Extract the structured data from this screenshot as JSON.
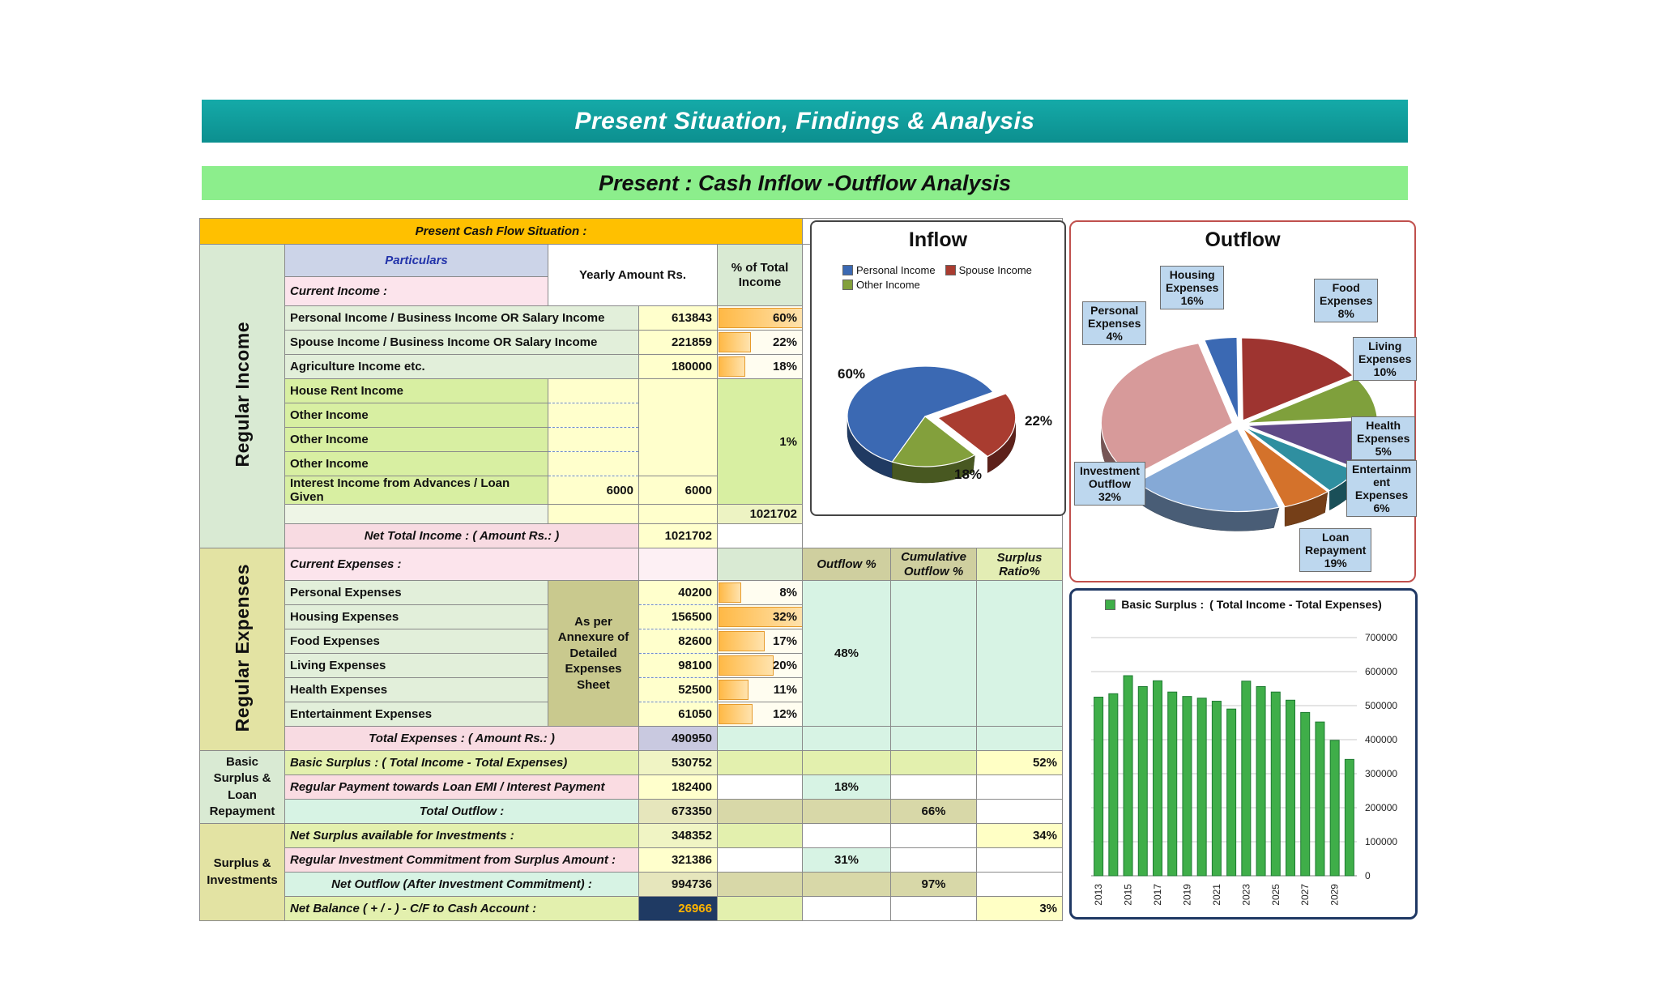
{
  "page": {
    "title": "Present Situation, Findings & Analysis",
    "subtitle": "Present : Cash Inflow -Outflow Analysis"
  },
  "table": {
    "header": "Present Cash Flow Situation :",
    "particulars": "Particulars",
    "yearly_amount": "Yearly Amount Rs.",
    "pct_total_income": "% of Total Income",
    "current_income": "Current Income :",
    "section_income": "Regular Income",
    "section_expenses": "Regular Expenses",
    "section_basic_surplus": "Basic Surplus & Loan Repayment",
    "section_surplus_inv": "Surplus & Investments",
    "income_rows": [
      {
        "label": "Personal Income / Business Income OR Salary Income",
        "amount": "613843",
        "pct": "60%",
        "bar": 100
      },
      {
        "label": "Spouse Income / Business Income OR Salary Income",
        "amount": "221859",
        "pct": "22%",
        "bar": 37
      },
      {
        "label": "Agriculture Income etc.",
        "amount": "180000",
        "pct": "18%",
        "bar": 30
      }
    ],
    "other_rows": [
      {
        "label": "House Rent Income"
      },
      {
        "label": "Other Income"
      },
      {
        "label": "Other Income"
      },
      {
        "label": "Other Income"
      }
    ],
    "other_pct": "1%",
    "interest_row": {
      "label": "Interest Income from Advances / Loan Given",
      "amount_a": "6000",
      "amount_b": "6000"
    },
    "subtotal_pct_cell": "1021702",
    "net_total": {
      "label": "Net Total Income : ( Amount Rs.: )",
      "amount": "1021702"
    },
    "current_expenses": "Current Expenses   :",
    "col_outflow": "Outflow %",
    "col_cumulative": "Cumulative Outflow %",
    "col_surplus_ratio": "Surplus Ratio%",
    "annexure_note": "As per Annexure of Detailed Expenses Sheet",
    "expense_rows": [
      {
        "label": "Personal Expenses",
        "amount": "40200",
        "pct": "8%",
        "bar": 25
      },
      {
        "label": "Housing Expenses",
        "amount": "156500",
        "pct": "32%",
        "bar": 100
      },
      {
        "label": "Food Expenses",
        "amount": "82600",
        "pct": "17%",
        "bar": 53
      },
      {
        "label": "Living Expenses",
        "amount": "98100",
        "pct": "20%",
        "bar": 63
      },
      {
        "label": "Health Expenses",
        "amount": "52500",
        "pct": "11%",
        "bar": 34
      },
      {
        "label": "Entertainment Expenses",
        "amount": "61050",
        "pct": "12%",
        "bar": 38
      }
    ],
    "expenses_outflow_pct": "48%",
    "total_expenses": {
      "label": "Total Expenses : ( Amount Rs.: )",
      "amount": "490950"
    },
    "basic_surplus_row": {
      "label": "Basic Surplus :    ( Total Income - Total Expenses)",
      "amount": "530752",
      "surplus_ratio": "52%"
    },
    "emi_row": {
      "label": "Regular Payment towards Loan EMI  /  Interest Payment",
      "amount": "182400",
      "outflow": "18%"
    },
    "total_outflow_row": {
      "label": "Total Outflow :",
      "amount": "673350",
      "cumulative": "66%"
    },
    "net_surplus_row": {
      "label": "Net Surplus available for Investments :",
      "amount": "348352",
      "surplus_ratio": "34%"
    },
    "investment_commit_row": {
      "label": "Regular Investment Commitment from Surplus Amount :",
      "amount": "321386",
      "outflow": "31%"
    },
    "net_outflow_row": {
      "label": "Net Outflow (After Investment Commitment) :",
      "amount": "994736",
      "cumulative": "97%"
    },
    "net_balance_row": {
      "label": "Net Balance ( + / - ) - C/F to Cash Account :",
      "amount": "26966",
      "surplus_ratio": "3%"
    }
  },
  "chart_data": [
    {
      "type": "pie",
      "title": "Inflow",
      "legend": [
        "Personal Income",
        "Spouse Income",
        "Other Income"
      ],
      "labels": [
        "Personal Income",
        "Spouse Income",
        "Other Income"
      ],
      "values": [
        60,
        22,
        18
      ],
      "data_labels": [
        "60%",
        "22%",
        "18%"
      ],
      "colors": [
        "#3b69b3",
        "#a93c30",
        "#83a03c"
      ],
      "start_angle": 115,
      "explode": [
        0,
        16,
        0
      ],
      "legend_position": "top"
    },
    {
      "type": "pie",
      "title": "Outflow",
      "labels": [
        "Personal Expenses",
        "Housing Expenses",
        "Food Expenses",
        "Living Expenses",
        "Health Expenses",
        "Entertainment Expenses",
        "Loan Repayment",
        "Investment Outflow"
      ],
      "values": [
        4,
        16,
        8,
        10,
        5,
        6,
        19,
        32
      ],
      "colors": [
        "#3b69b3",
        "#9e3430",
        "#7fa03c",
        "#5f4a87",
        "#2f8fa0",
        "#d4722b",
        "#85a9d6",
        "#d79a9a"
      ],
      "start_angle": -105,
      "callouts": [
        {
          "text": "Personal\nExpenses\n4%"
        },
        {
          "text": "Housing\nExpenses\n16%"
        },
        {
          "text": "Food\nExpenses\n8%"
        },
        {
          "text": "Living\nExpenses\n10%"
        },
        {
          "text": "Health\nExpenses\n5%"
        },
        {
          "text": "Entertainm\nent\nExpenses\n6%"
        },
        {
          "text": "Loan\nRepayment\n19%"
        },
        {
          "text": "Investment\nOutflow\n32%"
        }
      ]
    },
    {
      "type": "bar",
      "legend": "Basic Surplus :",
      "legend_note": "( Total Income - Total Expenses)",
      "categories": [
        2013,
        2014,
        2015,
        2016,
        2017,
        2018,
        2019,
        2020,
        2021,
        2022,
        2023,
        2024,
        2025,
        2026,
        2027,
        2028,
        2029,
        2030
      ],
      "values": [
        525000,
        535000,
        588000,
        556000,
        573000,
        540000,
        527000,
        522000,
        513000,
        490000,
        572000,
        556000,
        540000,
        516000,
        480000,
        452000,
        398000,
        342000
      ],
      "ylim": [
        0,
        700000
      ],
      "ytick_step": 100000,
      "grid": true,
      "yaxis_side": "right",
      "color": "#3fae49",
      "bar_border": "#1e7a32"
    }
  ]
}
